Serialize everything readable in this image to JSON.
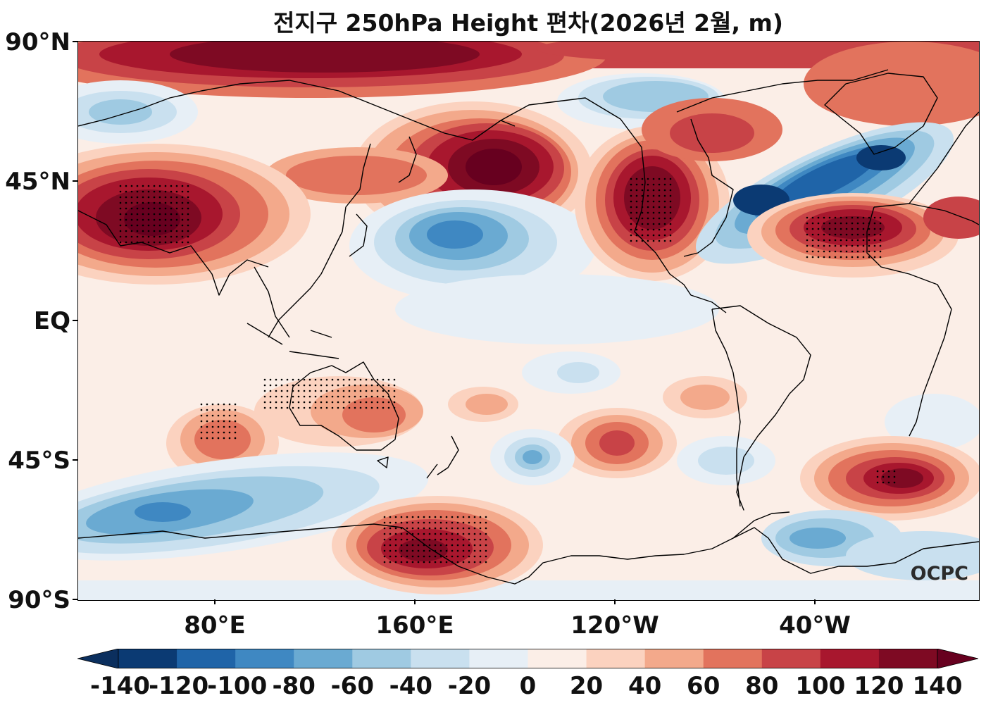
{
  "title": "전지구 250hPa Height 편차(2026년 2월, m)",
  "y_axis_labels": [
    "90°N",
    "45°N",
    "EQ",
    "45°S",
    "90°S"
  ],
  "x_axis_labels": [
    "80°E",
    "160°E",
    "120°W",
    "40°W"
  ],
  "watermark": "OCPC",
  "colorbar": {
    "labels": [
      "-140",
      "-120",
      "-100",
      "-80",
      "-60",
      "-40",
      "-20",
      "0",
      "20",
      "40",
      "60",
      "80",
      "100",
      "120",
      "140"
    ],
    "colors": [
      "#0b3a73",
      "#1f64a8",
      "#3f88c2",
      "#6aaad2",
      "#9fcae2",
      "#c9e0ef",
      "#e7eff6",
      "#fbeee7",
      "#fbd2bf",
      "#f3a98b",
      "#e2735d",
      "#c84347",
      "#a8172e",
      "#7e0a23"
    ],
    "under_color": "#0b2f5e",
    "over_color": "#67001f"
  },
  "legend_ticks": [
    "-140",
    "-120",
    "-100",
    "-80",
    "-60",
    "-40",
    "-20",
    "0",
    "20",
    "40",
    "60",
    "80",
    "100",
    "120",
    "140"
  ]
}
